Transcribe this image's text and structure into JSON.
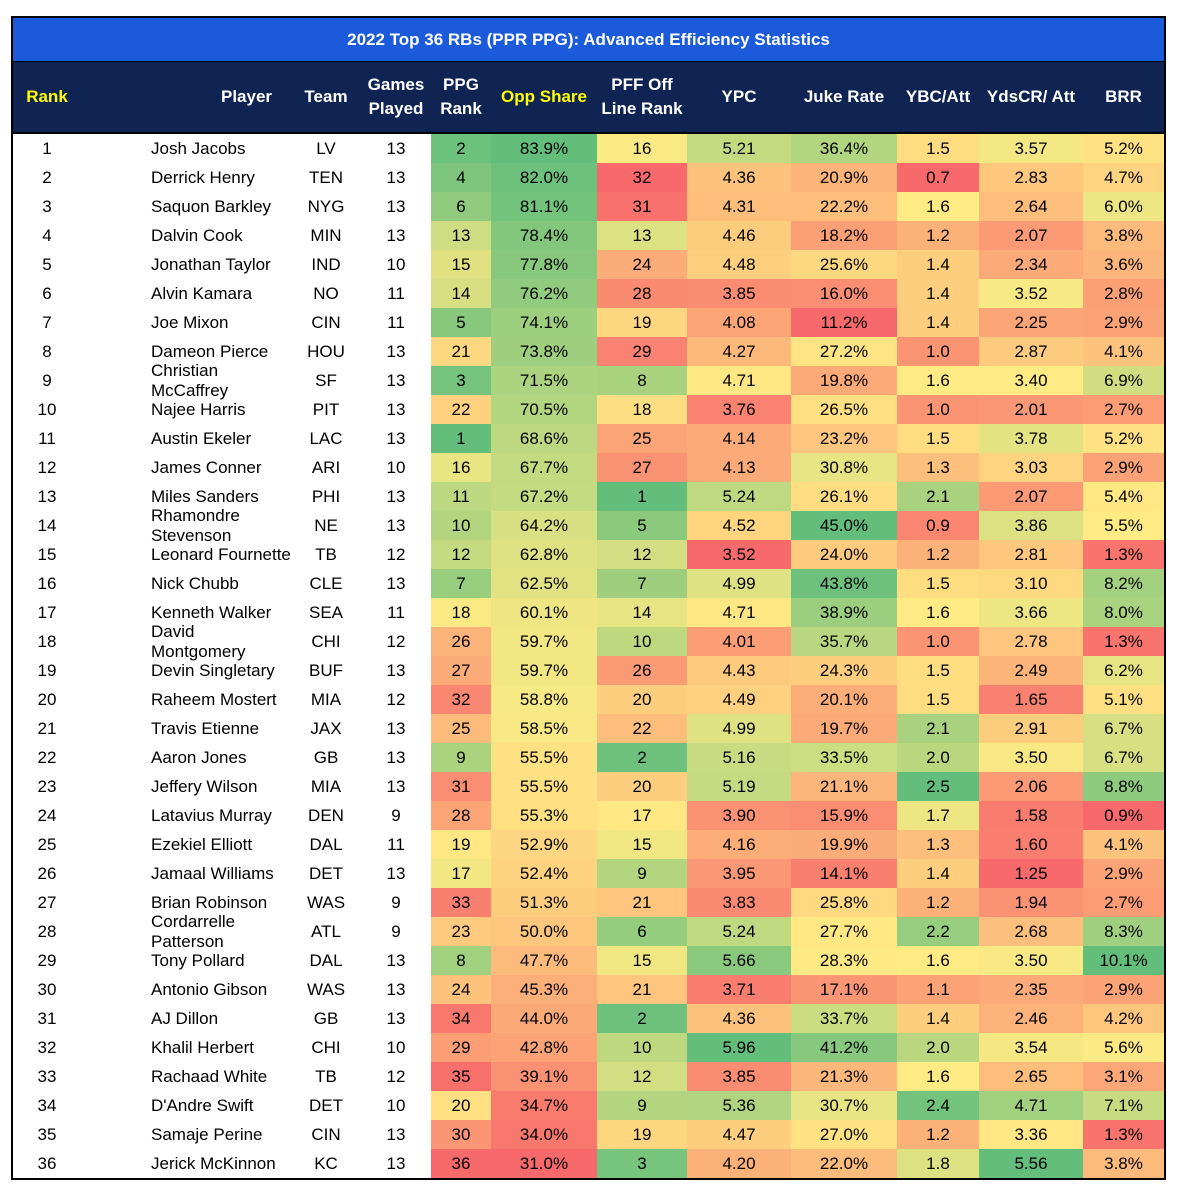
{
  "title": "2022 Top 36 RBs (PPR PPG): Advanced Efficiency Statistics",
  "headers": [
    {
      "label": "Rank",
      "highlight": true
    },
    {
      "label": "Player",
      "highlight": false
    },
    {
      "label": "Team",
      "highlight": false
    },
    {
      "label": "Games Played",
      "highlight": false
    },
    {
      "label": "PPG Rank",
      "highlight": false
    },
    {
      "label": "Opp Share",
      "highlight": true
    },
    {
      "label": "PFF Off Line Rank",
      "highlight": false
    },
    {
      "label": "YPC",
      "highlight": false
    },
    {
      "label": "Juke Rate",
      "highlight": false
    },
    {
      "label": "YBC/Att",
      "highlight": false
    },
    {
      "label": "YdsCR/ Att",
      "highlight": false
    },
    {
      "label": "BRR",
      "highlight": false
    }
  ],
  "rows": [
    [
      "1",
      "Josh Jacobs",
      "LV",
      "13",
      "2",
      "83.9%",
      "16",
      "5.21",
      "36.4%",
      "1.5",
      "3.57",
      "5.2%"
    ],
    [
      "2",
      "Derrick Henry",
      "TEN",
      "13",
      "4",
      "82.0%",
      "32",
      "4.36",
      "20.9%",
      "0.7",
      "2.83",
      "4.7%"
    ],
    [
      "3",
      "Saquon Barkley",
      "NYG",
      "13",
      "6",
      "81.1%",
      "31",
      "4.31",
      "22.2%",
      "1.6",
      "2.64",
      "6.0%"
    ],
    [
      "4",
      "Dalvin Cook",
      "MIN",
      "13",
      "13",
      "78.4%",
      "13",
      "4.46",
      "18.2%",
      "1.2",
      "2.07",
      "3.8%"
    ],
    [
      "5",
      "Jonathan Taylor",
      "IND",
      "10",
      "15",
      "77.8%",
      "24",
      "4.48",
      "25.6%",
      "1.4",
      "2.34",
      "3.6%"
    ],
    [
      "6",
      "Alvin Kamara",
      "NO",
      "11",
      "14",
      "76.2%",
      "28",
      "3.85",
      "16.0%",
      "1.4",
      "3.52",
      "2.8%"
    ],
    [
      "7",
      "Joe Mixon",
      "CIN",
      "11",
      "5",
      "74.1%",
      "19",
      "4.08",
      "11.2%",
      "1.4",
      "2.25",
      "2.9%"
    ],
    [
      "8",
      "Dameon Pierce",
      "HOU",
      "13",
      "21",
      "73.8%",
      "29",
      "4.27",
      "27.2%",
      "1.0",
      "2.87",
      "4.1%"
    ],
    [
      "9",
      "Christian McCaffrey",
      "SF",
      "13",
      "3",
      "71.5%",
      "8",
      "4.71",
      "19.8%",
      "1.6",
      "3.40",
      "6.9%"
    ],
    [
      "10",
      "Najee Harris",
      "PIT",
      "13",
      "22",
      "70.5%",
      "18",
      "3.76",
      "26.5%",
      "1.0",
      "2.01",
      "2.7%"
    ],
    [
      "11",
      "Austin Ekeler",
      "LAC",
      "13",
      "1",
      "68.6%",
      "25",
      "4.14",
      "23.2%",
      "1.5",
      "3.78",
      "5.2%"
    ],
    [
      "12",
      "James Conner",
      "ARI",
      "10",
      "16",
      "67.7%",
      "27",
      "4.13",
      "30.8%",
      "1.3",
      "3.03",
      "2.9%"
    ],
    [
      "13",
      "Miles Sanders",
      "PHI",
      "13",
      "11",
      "67.2%",
      "1",
      "5.24",
      "26.1%",
      "2.1",
      "2.07",
      "5.4%"
    ],
    [
      "14",
      "Rhamondre Stevenson",
      "NE",
      "13",
      "10",
      "64.2%",
      "5",
      "4.52",
      "45.0%",
      "0.9",
      "3.86",
      "5.5%"
    ],
    [
      "15",
      "Leonard Fournette",
      "TB",
      "12",
      "12",
      "62.8%",
      "12",
      "3.52",
      "24.0%",
      "1.2",
      "2.81",
      "1.3%"
    ],
    [
      "16",
      "Nick Chubb",
      "CLE",
      "13",
      "7",
      "62.5%",
      "7",
      "4.99",
      "43.8%",
      "1.5",
      "3.10",
      "8.2%"
    ],
    [
      "17",
      "Kenneth Walker",
      "SEA",
      "11",
      "18",
      "60.1%",
      "14",
      "4.71",
      "38.9%",
      "1.6",
      "3.66",
      "8.0%"
    ],
    [
      "18",
      "David Montgomery",
      "CHI",
      "12",
      "26",
      "59.7%",
      "10",
      "4.01",
      "35.7%",
      "1.0",
      "2.78",
      "1.3%"
    ],
    [
      "19",
      "Devin Singletary",
      "BUF",
      "13",
      "27",
      "59.7%",
      "26",
      "4.43",
      "24.3%",
      "1.5",
      "2.49",
      "6.2%"
    ],
    [
      "20",
      "Raheem Mostert",
      "MIA",
      "12",
      "32",
      "58.8%",
      "20",
      "4.49",
      "20.1%",
      "1.5",
      "1.65",
      "5.1%"
    ],
    [
      "21",
      "Travis Etienne",
      "JAX",
      "13",
      "25",
      "58.5%",
      "22",
      "4.99",
      "19.7%",
      "2.1",
      "2.91",
      "6.7%"
    ],
    [
      "22",
      "Aaron Jones",
      "GB",
      "13",
      "9",
      "55.5%",
      "2",
      "5.16",
      "33.5%",
      "2.0",
      "3.50",
      "6.7%"
    ],
    [
      "23",
      "Jeffery Wilson",
      "MIA",
      "13",
      "31",
      "55.5%",
      "20",
      "5.19",
      "21.1%",
      "2.5",
      "2.06",
      "8.8%"
    ],
    [
      "24",
      "Latavius Murray",
      "DEN",
      "9",
      "28",
      "55.3%",
      "17",
      "3.90",
      "15.9%",
      "1.7",
      "1.58",
      "0.9%"
    ],
    [
      "25",
      "Ezekiel Elliott",
      "DAL",
      "11",
      "19",
      "52.9%",
      "15",
      "4.16",
      "19.9%",
      "1.3",
      "1.60",
      "4.1%"
    ],
    [
      "26",
      "Jamaal Williams",
      "DET",
      "13",
      "17",
      "52.4%",
      "9",
      "3.95",
      "14.1%",
      "1.4",
      "1.25",
      "2.9%"
    ],
    [
      "27",
      "Brian Robinson",
      "WAS",
      "9",
      "33",
      "51.3%",
      "21",
      "3.83",
      "25.8%",
      "1.2",
      "1.94",
      "2.7%"
    ],
    [
      "28",
      "Cordarrelle Patterson",
      "ATL",
      "9",
      "23",
      "50.0%",
      "6",
      "5.24",
      "27.7%",
      "2.2",
      "2.68",
      "8.3%"
    ],
    [
      "29",
      "Tony Pollard",
      "DAL",
      "13",
      "8",
      "47.7%",
      "15",
      "5.66",
      "28.3%",
      "1.6",
      "3.50",
      "10.1%"
    ],
    [
      "30",
      "Antonio Gibson",
      "WAS",
      "13",
      "24",
      "45.3%",
      "21",
      "3.71",
      "17.1%",
      "1.1",
      "2.35",
      "2.9%"
    ],
    [
      "31",
      "AJ Dillon",
      "GB",
      "13",
      "34",
      "44.0%",
      "2",
      "4.36",
      "33.7%",
      "1.4",
      "2.46",
      "4.2%"
    ],
    [
      "32",
      "Khalil Herbert",
      "CHI",
      "10",
      "29",
      "42.8%",
      "10",
      "5.96",
      "41.2%",
      "2.0",
      "3.54",
      "5.6%"
    ],
    [
      "33",
      "Rachaad White",
      "TB",
      "12",
      "35",
      "39.1%",
      "12",
      "3.85",
      "21.3%",
      "1.6",
      "2.65",
      "3.1%"
    ],
    [
      "34",
      "D'Andre Swift",
      "DET",
      "10",
      "20",
      "34.7%",
      "9",
      "5.36",
      "30.7%",
      "2.4",
      "4.71",
      "7.1%"
    ],
    [
      "35",
      "Samaje Perine",
      "CIN",
      "13",
      "30",
      "34.0%",
      "19",
      "4.47",
      "27.0%",
      "1.2",
      "3.36",
      "1.3%"
    ],
    [
      "36",
      "Jerick McKinnon",
      "KC",
      "13",
      "36",
      "31.0%",
      "3",
      "4.20",
      "22.0%",
      "1.8",
      "5.56",
      "3.8%"
    ]
  ],
  "colors": {
    "title_bg": "#1a5adb",
    "header_bg": "#0f2452",
    "header_highlight": "#ffff00",
    "scale_low": "#f8696b",
    "scale_mid": "#ffeb84",
    "scale_high": "#63be7b"
  }
}
